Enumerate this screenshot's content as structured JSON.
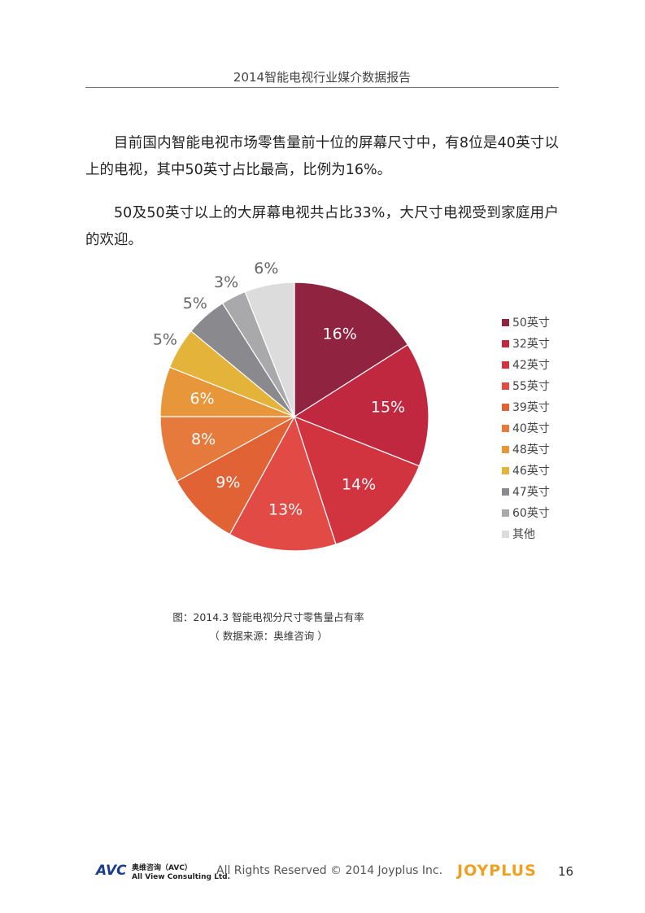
{
  "header": {
    "title": "2014智能电视行业媒介数据报告"
  },
  "body": {
    "paragraphs": [
      "目前国内智能电视市场零售量前十位的屏幕尺寸中，有8位是40英寸以上的电视，其中50英寸占比最高，比例为16%。",
      "50及50英寸以上的大屏幕电视共占比33%，大尺寸电视受到家庭用户的欢迎。"
    ]
  },
  "chart_data": {
    "type": "pie",
    "categories": [
      "50英寸",
      "32英寸",
      "42英寸",
      "55英寸",
      "39英寸",
      "40英寸",
      "48英寸",
      "46英寸",
      "47英寸",
      "60英寸",
      "其他"
    ],
    "values": [
      16,
      15,
      14,
      13,
      9,
      8,
      6,
      5,
      5,
      3,
      6
    ],
    "value_labels": [
      "16%",
      "15%",
      "14%",
      "13%",
      "9%",
      "8%",
      "6%",
      "5%",
      "5%",
      "3%",
      "6%"
    ],
    "colors": [
      "#8f2340",
      "#c0283f",
      "#d1343f",
      "#e24a45",
      "#e06235",
      "#e67a3c",
      "#e8963a",
      "#e4b43a",
      "#8a8a8e",
      "#a9a9ab",
      "#dcdcdc"
    ],
    "legend": "right"
  },
  "caption": [
    "图：2014.3 智能电视分尺寸零售量占有率",
    "（ 数据来源：奥维咨询 ）"
  ],
  "footer": {
    "avc_logo": "AVC",
    "avc_cn": "奥维咨询（AVC）",
    "avc_en": "All View Consulting Ltd.",
    "copyright": "All Rights Reserved © 2014 Joyplus Inc.",
    "logo": "JOYPLUS",
    "page_number": "16"
  }
}
